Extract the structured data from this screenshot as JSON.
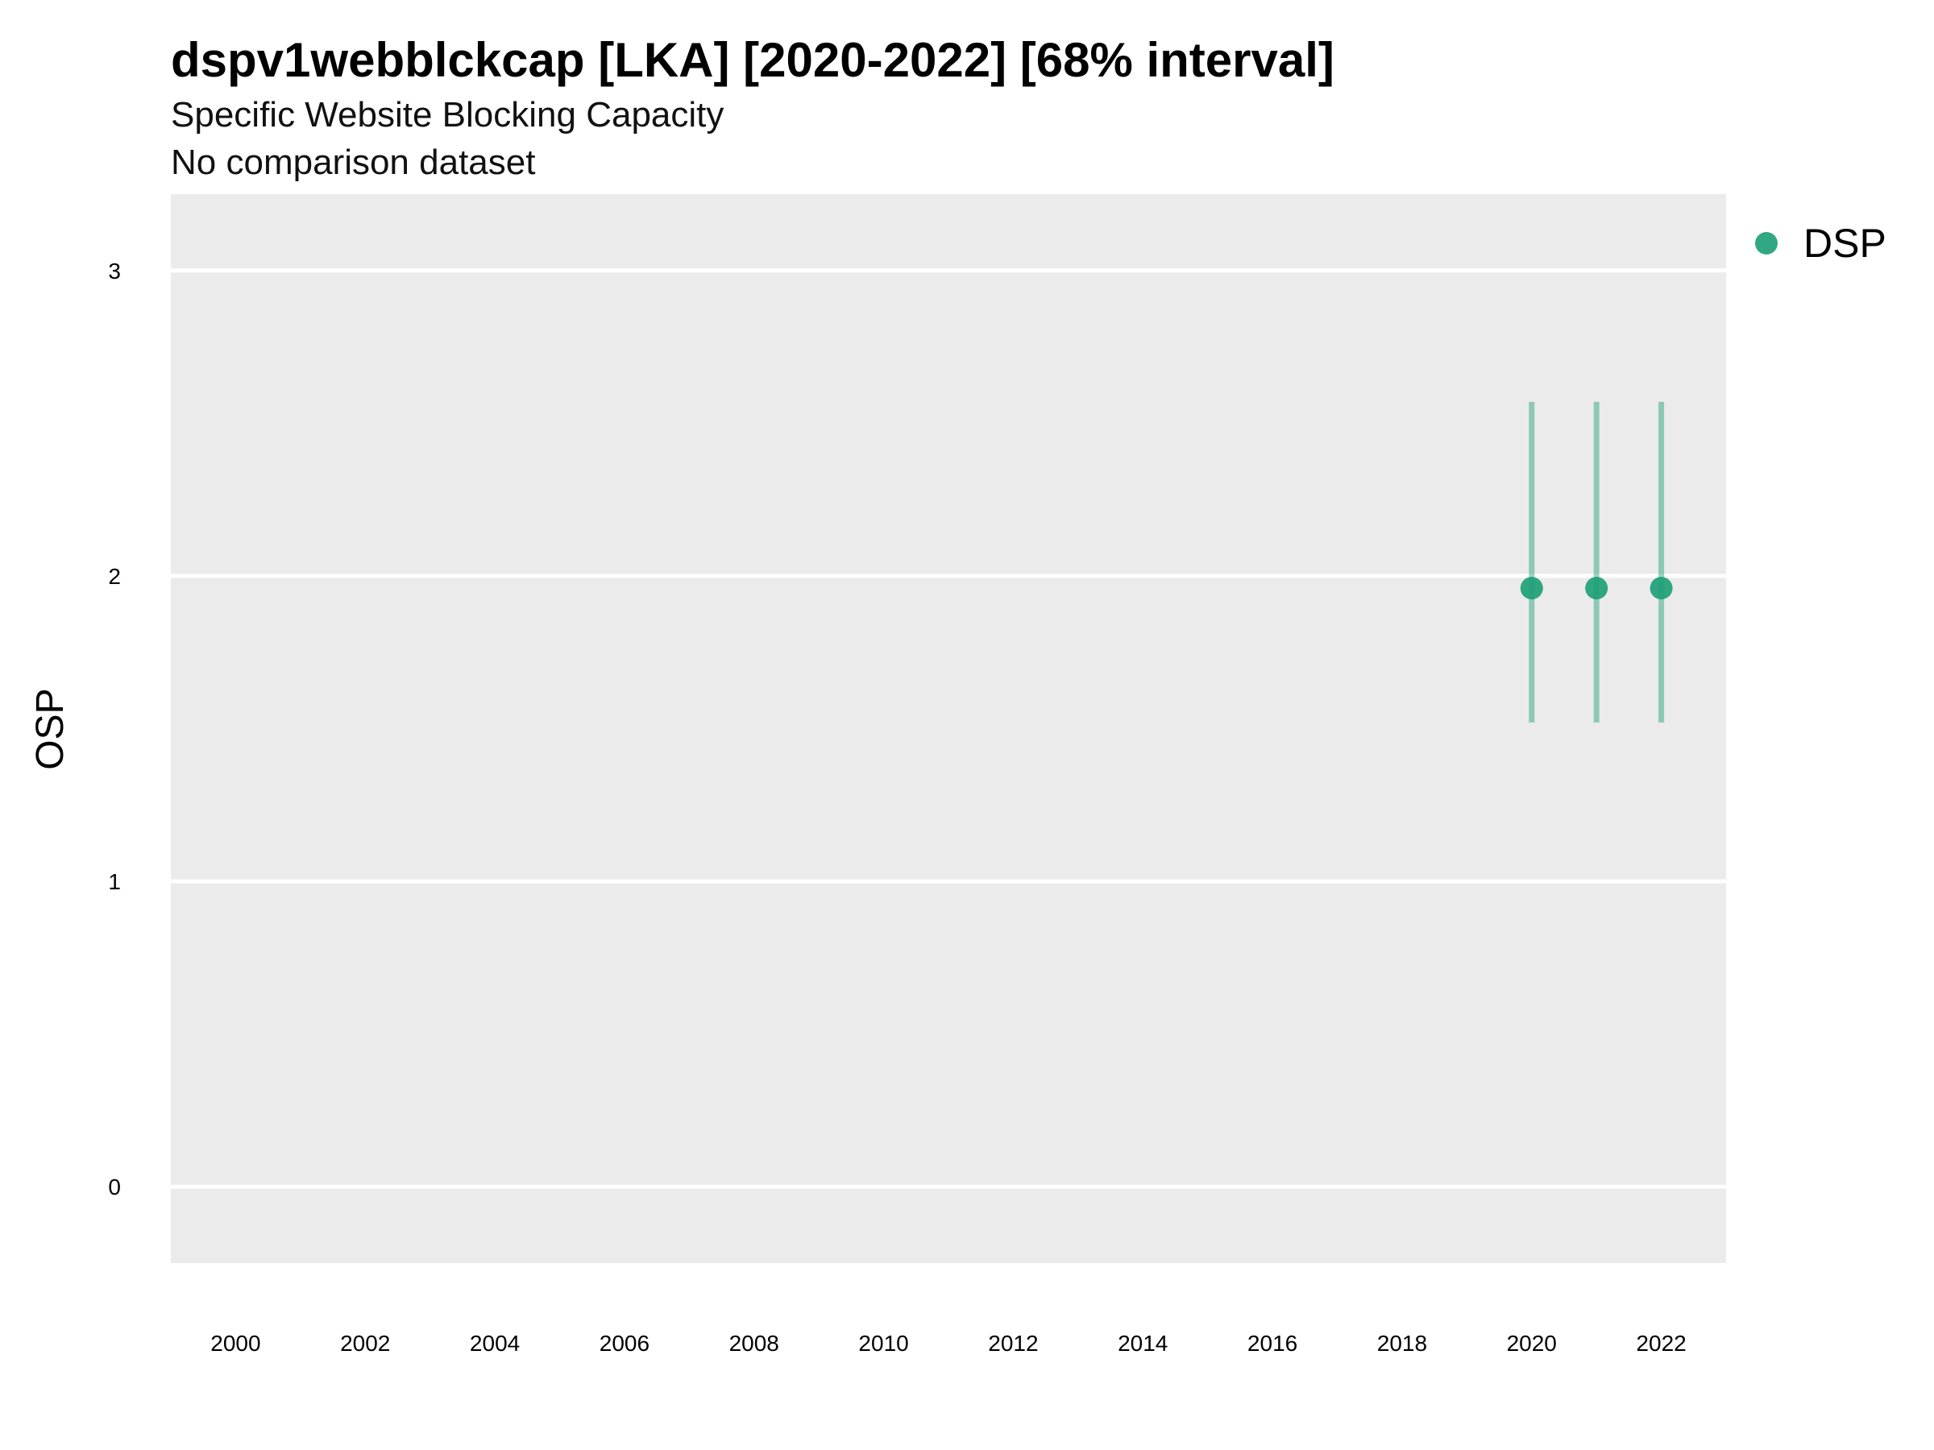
{
  "chart_data": {
    "type": "scatter",
    "title": "dspv1webblckcap [LKA] [2020-2022] [68% interval]",
    "subtitle": "Specific Website Blocking Capacity",
    "caption": "No comparison dataset",
    "xlabel": "",
    "ylabel": "OSP",
    "xlim": [
      1999,
      2023
    ],
    "ylim": [
      -0.25,
      3.25
    ],
    "x_ticks": [
      2000,
      2002,
      2004,
      2006,
      2008,
      2010,
      2012,
      2014,
      2016,
      2018,
      2020,
      2022
    ],
    "y_ticks": [
      0,
      1,
      2,
      3
    ],
    "grid": true,
    "legend_position": "top-right",
    "series": [
      {
        "name": "DSP",
        "color": "#1b9e77",
        "points": [
          {
            "x": 2020,
            "y": 1.96,
            "low": 1.52,
            "high": 2.57
          },
          {
            "x": 2021,
            "y": 1.96,
            "low": 1.52,
            "high": 2.57
          },
          {
            "x": 2022,
            "y": 1.96,
            "low": 1.52,
            "high": 2.57
          }
        ]
      }
    ]
  }
}
